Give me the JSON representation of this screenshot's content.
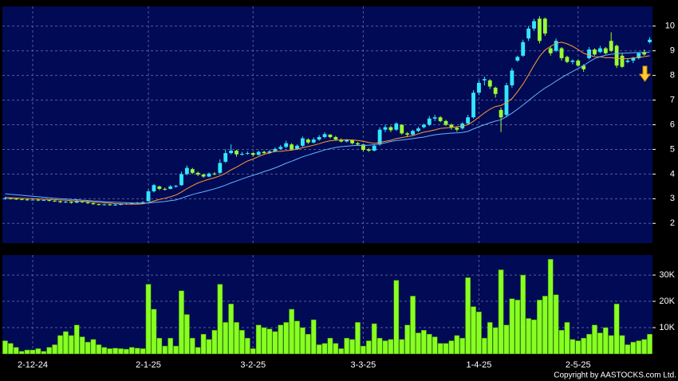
{
  "chart_data": [
    {
      "type": "candlestick",
      "open": [
        3.0,
        3.02,
        3.0,
        2.98,
        2.97,
        2.95,
        2.96,
        2.93,
        2.95,
        2.92,
        2.9,
        2.86,
        2.88,
        2.84,
        2.9,
        2.86,
        2.82,
        2.78,
        2.76,
        2.77,
        2.75,
        2.76,
        2.78,
        2.8,
        2.82,
        2.84,
        2.9,
        3.3,
        3.5,
        3.4,
        3.4,
        3.5,
        3.55,
        4.0,
        4.2,
        4.05,
        3.98,
        3.9,
        4.02,
        4.05,
        4.5,
        4.85,
        4.95,
        4.8,
        4.82,
        4.85,
        4.78,
        4.9,
        4.85,
        4.92,
        5.02,
        5.1,
        5.2,
        5.0,
        5.15,
        5.4,
        5.28,
        5.4,
        5.5,
        5.6,
        5.5,
        5.4,
        5.32,
        5.38,
        5.25,
        5.2,
        5.0,
        4.95,
        5.2,
        5.8,
        5.9,
        5.8,
        6.0,
        5.65,
        5.6,
        5.75,
        5.9,
        6.0,
        6.25,
        6.3,
        6.15,
        6.0,
        5.88,
        5.85,
        6.05,
        6.3,
        7.3,
        7.8,
        7.8,
        7.5,
        6.6,
        6.4,
        7.6,
        8.6,
        8.8,
        9.5,
        9.9,
        10.3,
        10.3,
        9.1,
        9.0,
        9.1,
        8.75,
        8.55,
        8.6,
        8.4,
        8.7,
        9.05,
        8.95,
        9.1,
        9.4,
        9.2,
        8.8,
        8.55,
        8.6,
        8.7,
        8.95,
        9.35
      ],
      "high": [
        3.08,
        3.05,
        3.02,
        3.0,
        2.99,
        2.99,
        2.98,
        2.97,
        2.97,
        2.94,
        2.92,
        2.91,
        2.9,
        2.95,
        2.92,
        2.88,
        2.84,
        2.8,
        2.8,
        2.79,
        2.79,
        2.81,
        2.83,
        2.85,
        2.87,
        2.9,
        3.38,
        3.6,
        3.52,
        3.45,
        3.55,
        3.56,
        4.1,
        4.35,
        4.25,
        4.1,
        4.02,
        4.06,
        4.08,
        4.6,
        5.0,
        5.2,
        4.98,
        4.9,
        4.92,
        4.88,
        4.95,
        4.95,
        4.98,
        5.08,
        5.18,
        5.35,
        5.25,
        5.2,
        5.52,
        5.45,
        5.48,
        5.58,
        5.7,
        5.62,
        5.55,
        5.45,
        5.42,
        5.4,
        5.3,
        5.22,
        5.05,
        5.2,
        5.9,
        6.0,
        5.95,
        6.1,
        6.02,
        5.7,
        5.8,
        5.92,
        6.05,
        6.35,
        6.4,
        6.35,
        6.2,
        6.05,
        5.92,
        6.1,
        6.4,
        7.4,
        7.8,
        7.95,
        7.85,
        7.55,
        6.7,
        7.7,
        8.3,
        8.8,
        9.45,
        10.0,
        10.3,
        10.4,
        10.35,
        9.2,
        9.5,
        9.15,
        8.8,
        8.65,
        8.65,
        8.45,
        9.15,
        9.1,
        9.2,
        9.15,
        9.75,
        9.25,
        8.9,
        8.7,
        8.75,
        8.95,
        9.05,
        9.55
      ],
      "low": [
        2.96,
        2.97,
        2.95,
        2.94,
        2.92,
        2.93,
        2.9,
        2.91,
        2.89,
        2.87,
        2.83,
        2.83,
        2.8,
        2.82,
        2.83,
        2.79,
        2.75,
        2.73,
        2.73,
        2.72,
        2.72,
        2.74,
        2.76,
        2.78,
        2.8,
        2.81,
        2.88,
        3.25,
        3.35,
        3.33,
        3.38,
        3.45,
        3.52,
        3.95,
        4.0,
        3.92,
        3.85,
        3.88,
        3.95,
        4.0,
        4.45,
        4.8,
        4.7,
        4.75,
        4.78,
        4.72,
        4.75,
        4.8,
        4.82,
        4.88,
        4.98,
        5.05,
        4.95,
        4.98,
        5.1,
        5.22,
        5.25,
        5.35,
        5.45,
        5.45,
        5.35,
        5.28,
        5.28,
        5.2,
        5.15,
        4.92,
        4.9,
        4.92,
        5.15,
        5.7,
        5.7,
        5.75,
        5.6,
        5.52,
        5.55,
        5.7,
        5.85,
        5.95,
        6.15,
        6.1,
        5.95,
        5.8,
        5.72,
        5.8,
        6.0,
        6.25,
        7.2,
        7.6,
        7.45,
        7.1,
        5.7,
        6.3,
        7.5,
        8.55,
        8.75,
        9.4,
        9.8,
        9.3,
        9.6,
        8.8,
        8.95,
        8.6,
        8.5,
        8.45,
        8.35,
        8.15,
        8.65,
        8.8,
        8.9,
        8.85,
        8.95,
        8.3,
        8.3,
        8.5,
        8.5,
        8.65,
        8.8,
        9.3
      ],
      "close": [
        3.02,
        3.0,
        2.98,
        2.97,
        2.95,
        2.96,
        2.93,
        2.95,
        2.92,
        2.9,
        2.86,
        2.88,
        2.84,
        2.9,
        2.86,
        2.82,
        2.78,
        2.76,
        2.77,
        2.75,
        2.76,
        2.78,
        2.8,
        2.82,
        2.84,
        2.86,
        3.3,
        3.55,
        3.4,
        3.38,
        3.5,
        3.52,
        4.0,
        4.25,
        4.05,
        3.98,
        3.9,
        4.02,
        4.0,
        4.45,
        4.85,
        4.95,
        4.8,
        4.82,
        4.85,
        4.78,
        4.9,
        4.85,
        4.92,
        5.02,
        5.1,
        5.25,
        5.0,
        5.15,
        5.45,
        5.28,
        5.4,
        5.5,
        5.62,
        5.5,
        5.4,
        5.32,
        5.38,
        5.25,
        5.2,
        4.98,
        4.95,
        5.15,
        5.8,
        5.9,
        5.78,
        6.05,
        5.65,
        5.6,
        5.75,
        5.85,
        6.0,
        6.25,
        6.3,
        6.15,
        6.0,
        5.88,
        5.8,
        6.05,
        6.3,
        7.3,
        7.7,
        7.85,
        7.55,
        7.25,
        6.3,
        7.6,
        8.2,
        8.75,
        9.35,
        9.9,
        10.2,
        9.4,
        9.7,
        8.9,
        9.4,
        8.7,
        8.55,
        8.6,
        8.4,
        8.25,
        9.05,
        8.85,
        9.1,
        8.9,
        9.0,
        8.4,
        8.35,
        8.6,
        8.7,
        8.9,
        8.85,
        9.45
      ],
      "up_color": "#33e6ff",
      "down_color": "#99ff33",
      "overlays": [
        {
          "color": "#ff9933",
          "values": [
            3.05,
            3.04,
            3.03,
            3.02,
            3.01,
            3.0,
            2.99,
            2.98,
            2.97,
            2.96,
            2.95,
            2.94,
            2.92,
            2.91,
            2.9,
            2.89,
            2.87,
            2.85,
            2.84,
            2.82,
            2.8,
            2.79,
            2.78,
            2.78,
            2.78,
            2.79,
            2.84,
            2.91,
            2.97,
            3.02,
            3.08,
            3.15,
            3.27,
            3.41,
            3.53,
            3.64,
            3.72,
            3.79,
            3.85,
            3.93,
            4.03,
            4.17,
            4.28,
            4.41,
            4.53,
            4.61,
            4.71,
            4.8,
            4.86,
            4.92,
            4.92,
            4.95,
            4.97,
            5.01,
            5.07,
            5.12,
            5.17,
            5.23,
            5.3,
            5.35,
            5.37,
            5.38,
            5.39,
            5.38,
            5.36,
            5.33,
            5.28,
            5.25,
            5.28,
            5.33,
            5.37,
            5.44,
            5.48,
            5.52,
            5.56,
            5.63,
            5.7,
            5.74,
            5.79,
            5.85,
            5.87,
            5.89,
            5.92,
            5.95,
            6.0,
            6.14,
            6.31,
            6.48,
            6.63,
            6.74,
            6.78,
            6.9,
            7.06,
            7.34,
            7.65,
            8.02,
            8.41,
            8.77,
            9.03,
            9.18,
            9.3,
            9.35,
            9.28,
            9.18,
            9.05,
            8.9,
            8.82,
            8.76,
            8.75,
            8.72,
            8.72,
            8.69,
            8.68,
            8.68,
            8.71,
            8.73,
            8.76,
            8.8
          ]
        },
        {
          "color": "#66b3ff",
          "values": [
            3.2,
            3.18,
            3.16,
            3.14,
            3.12,
            3.1,
            3.08,
            3.06,
            3.04,
            3.02,
            3.0,
            2.99,
            2.97,
            2.96,
            2.94,
            2.93,
            2.91,
            2.9,
            2.88,
            2.87,
            2.86,
            2.85,
            2.84,
            2.83,
            2.82,
            2.82,
            2.83,
            2.85,
            2.87,
            2.89,
            2.92,
            2.95,
            3.02,
            3.1,
            3.17,
            3.23,
            3.28,
            3.34,
            3.4,
            3.47,
            3.55,
            3.64,
            3.72,
            3.8,
            3.88,
            3.95,
            4.02,
            4.1,
            4.17,
            4.25,
            4.34,
            4.44,
            4.52,
            4.61,
            4.7,
            4.77,
            4.84,
            4.91,
            4.98,
            5.03,
            5.08,
            5.11,
            5.13,
            5.15,
            5.16,
            5.16,
            5.17,
            5.19,
            5.22,
            5.27,
            5.32,
            5.36,
            5.38,
            5.41,
            5.44,
            5.47,
            5.5,
            5.55,
            5.59,
            5.62,
            5.64,
            5.66,
            5.67,
            5.69,
            5.73,
            5.83,
            5.92,
            6.0,
            6.08,
            6.15,
            6.2,
            6.33,
            6.47,
            6.63,
            6.8,
            6.98,
            7.16,
            7.33,
            7.49,
            7.62,
            7.77,
            7.91,
            8.04,
            8.16,
            8.28,
            8.4,
            8.55,
            8.68,
            8.76,
            8.82,
            8.86,
            8.88,
            8.9,
            8.91,
            8.92,
            8.93,
            8.93,
            8.94
          ]
        }
      ],
      "ylim": [
        1.2,
        10.8
      ],
      "yticks": [
        2,
        3,
        4,
        5,
        6,
        7,
        8,
        9,
        10
      ],
      "grid": true
    },
    {
      "type": "bar",
      "categories": [
        null,
        null,
        null,
        null,
        null,
        "2-12-24",
        null,
        null,
        null,
        null,
        null,
        null,
        null,
        null,
        null,
        null,
        null,
        null,
        null,
        null,
        null,
        null,
        null,
        null,
        null,
        null,
        "2-1-25",
        null,
        null,
        null,
        null,
        null,
        null,
        null,
        null,
        null,
        null,
        null,
        null,
        null,
        null,
        null,
        null,
        null,
        null,
        "3-2-25",
        null,
        null,
        null,
        null,
        null,
        null,
        null,
        null,
        null,
        null,
        null,
        null,
        null,
        null,
        null,
        null,
        null,
        null,
        null,
        "3-3-25",
        null,
        null,
        null,
        null,
        null,
        null,
        null,
        null,
        null,
        null,
        null,
        null,
        null,
        null,
        null,
        null,
        null,
        null,
        null,
        null,
        "1-4-25",
        null,
        null,
        null,
        null,
        null,
        null,
        null,
        null,
        null,
        null,
        null,
        null,
        null,
        null,
        null,
        null,
        null,
        "2-5-25",
        null,
        null,
        null,
        null,
        null,
        null,
        null,
        null,
        null,
        null,
        null,
        null,
        null
      ],
      "values": [
        5000,
        4000,
        2500,
        1000,
        1500,
        1500,
        2000,
        1000,
        2500,
        3500,
        7000,
        8500,
        7000,
        11000,
        6500,
        4500,
        5500,
        3500,
        2500,
        2000,
        2200,
        2000,
        1800,
        2500,
        2200,
        2000,
        26500,
        17000,
        6000,
        3000,
        6000,
        3000,
        24000,
        15000,
        6000,
        2500,
        7500,
        5500,
        9000,
        26500,
        12000,
        19000,
        12000,
        9000,
        6000,
        2000,
        11000,
        10000,
        9500,
        8500,
        11000,
        12000,
        17000,
        12500,
        10000,
        7500,
        13000,
        3500,
        4000,
        6000,
        4000,
        2000,
        6000,
        5500,
        12000,
        3000,
        5000,
        11500,
        6000,
        5000,
        5500,
        28000,
        5500,
        11000,
        22000,
        8000,
        9000,
        7500,
        6500,
        4000,
        4000,
        5000,
        7000,
        6000,
        29000,
        18000,
        16000,
        6000,
        12000,
        10000,
        32000,
        11000,
        21000,
        20500,
        30000,
        13500,
        13000,
        20500,
        22000,
        36000,
        22500,
        9000,
        12000,
        5500,
        5000,
        6000,
        7500,
        11000,
        8000,
        10000,
        7000,
        19000,
        7000,
        3500,
        4500,
        5000,
        5500,
        7500
      ],
      "color": "#88ff22",
      "ylim": [
        0,
        37600
      ],
      "yticks": [
        {
          "value": 10000,
          "label": "10K"
        },
        {
          "value": 20000,
          "label": "20K"
        },
        {
          "value": 30000,
          "label": "30K"
        }
      ],
      "grid": true,
      "source": "Copyright by AASTOCKS.com Ltd."
    }
  ]
}
